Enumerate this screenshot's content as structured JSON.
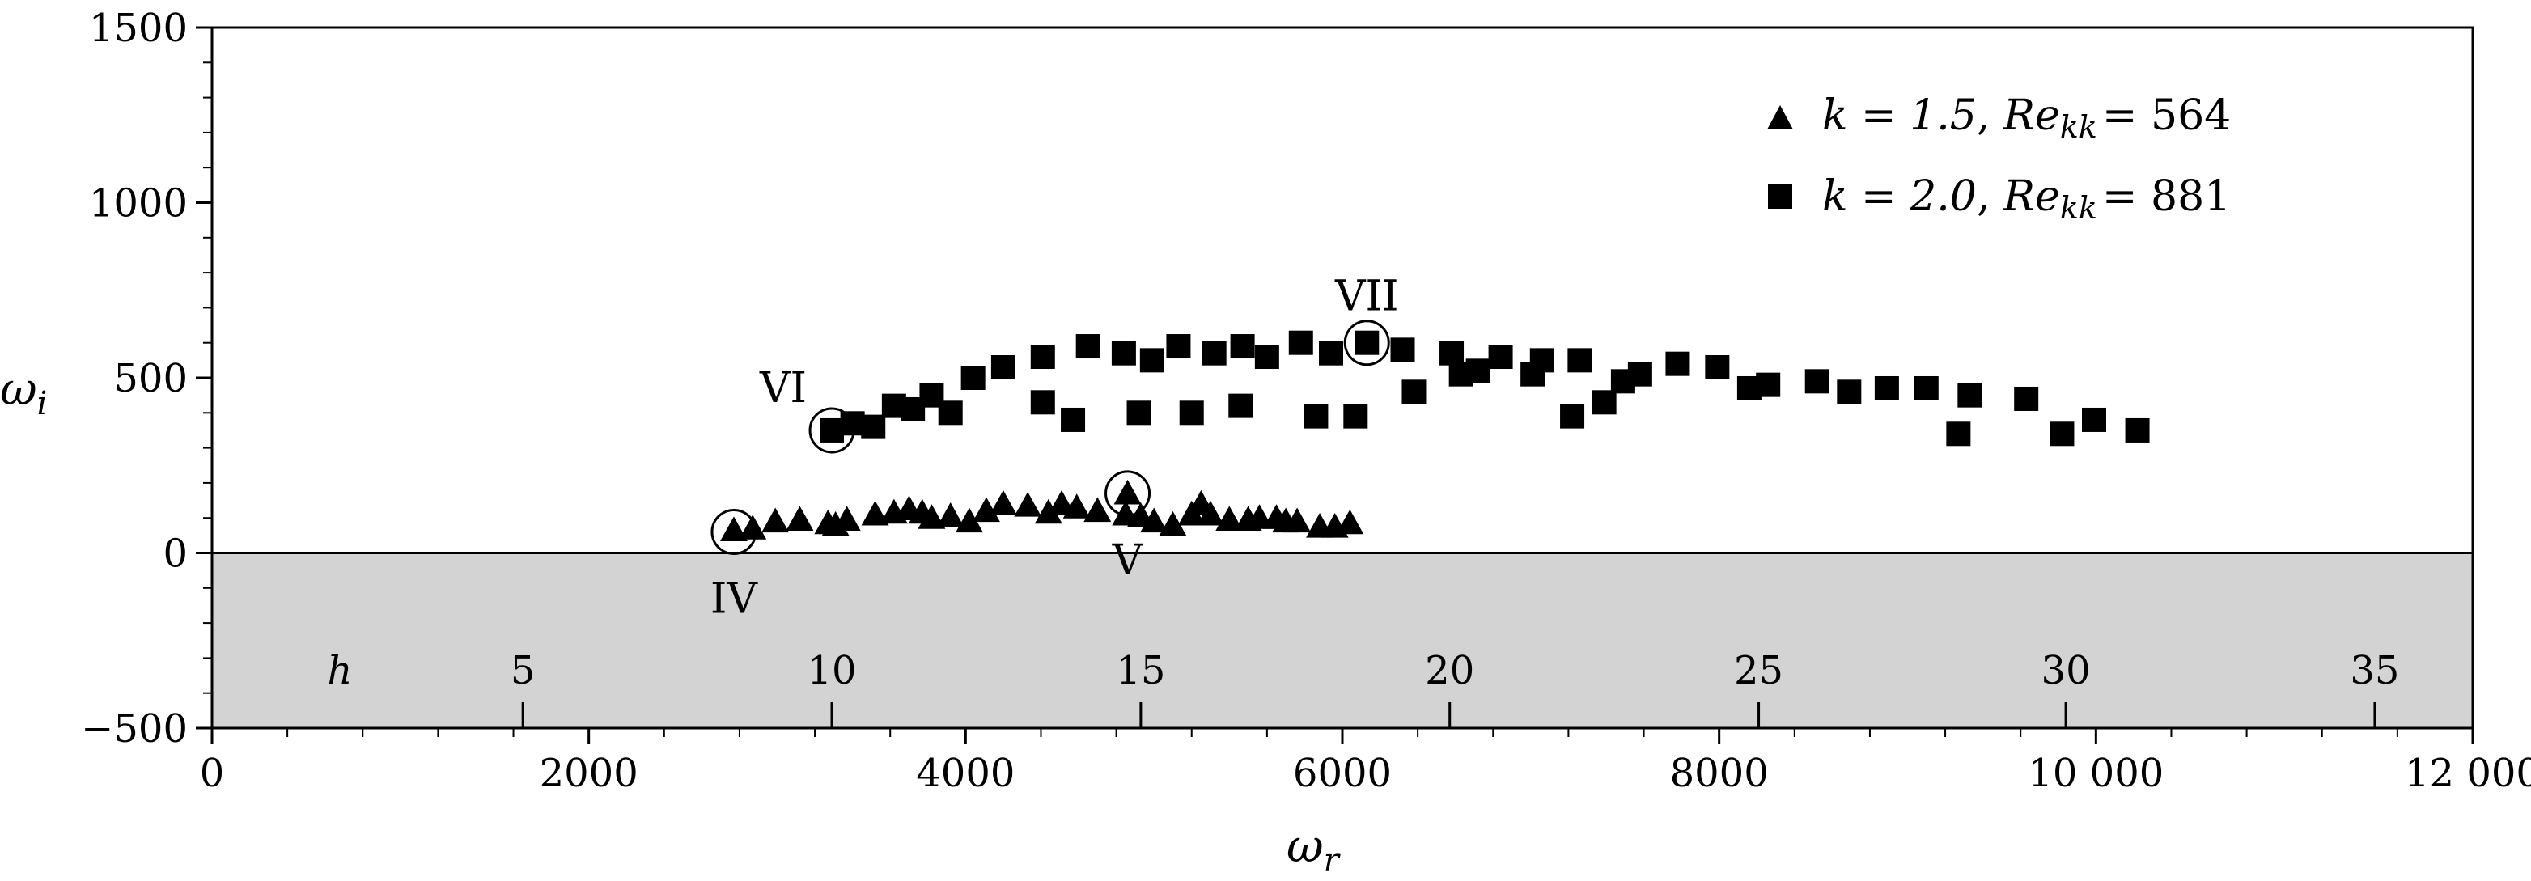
{
  "chart_data": {
    "type": "scatter",
    "title": "",
    "xlabel": "ω",
    "xlabel_sub": "r",
    "ylabel": "ω",
    "ylabel_sub": "i",
    "xlim": [
      0,
      12000
    ],
    "ylim": [
      -500,
      1500
    ],
    "x_ticks": [
      0,
      2000,
      4000,
      6000,
      8000,
      10000,
      12000
    ],
    "x_tick_labels": [
      "0",
      "2000",
      "4000",
      "6000",
      "8000",
      "10 000",
      "12 000"
    ],
    "y_ticks": [
      -500,
      0,
      500,
      1000,
      1500
    ],
    "y_tick_labels": [
      "−500",
      "0",
      "500",
      "1000",
      "1500"
    ],
    "shaded_region": {
      "y_from": -500,
      "y_to": 0,
      "color": "#d3d3d3"
    },
    "h_axis": {
      "label": "h",
      "ticks": [
        {
          "label": "5",
          "x": 1650
        },
        {
          "label": "10",
          "x": 3290
        },
        {
          "label": "15",
          "x": 4930
        },
        {
          "label": "20",
          "x": 6570
        },
        {
          "label": "25",
          "x": 8210
        },
        {
          "label": "30",
          "x": 9840
        },
        {
          "label": "35",
          "x": 11480
        }
      ]
    },
    "legend": {
      "position": "top-right",
      "entries": [
        {
          "marker": "triangle",
          "k": "k = 1.5",
          "re_label": "Re",
          "re_sub": "kk",
          "re_value": "= 564"
        },
        {
          "marker": "square",
          "k": "k = 2.0",
          "re_label": "Re",
          "re_sub": "kk",
          "re_value": "= 881"
        }
      ]
    },
    "series": [
      {
        "name": "k = 1.5, Re_kk = 564",
        "marker": "triangle",
        "points": [
          [
            2770,
            65
          ],
          [
            2870,
            70
          ],
          [
            2990,
            90
          ],
          [
            3120,
            95
          ],
          [
            3270,
            85
          ],
          [
            3310,
            80
          ],
          [
            3370,
            95
          ],
          [
            3520,
            110
          ],
          [
            3620,
            115
          ],
          [
            3700,
            125
          ],
          [
            3770,
            115
          ],
          [
            3820,
            100
          ],
          [
            3920,
            105
          ],
          [
            4020,
            90
          ],
          [
            4110,
            120
          ],
          [
            4200,
            140
          ],
          [
            4330,
            135
          ],
          [
            4440,
            115
          ],
          [
            4510,
            140
          ],
          [
            4590,
            130
          ],
          [
            4700,
            120
          ],
          [
            4850,
            110
          ],
          [
            4860,
            170
          ],
          [
            4930,
            105
          ],
          [
            5000,
            90
          ],
          [
            5100,
            80
          ],
          [
            5200,
            110
          ],
          [
            5250,
            140
          ],
          [
            5300,
            110
          ],
          [
            5400,
            95
          ],
          [
            5500,
            95
          ],
          [
            5560,
            100
          ],
          [
            5650,
            100
          ],
          [
            5700,
            90
          ],
          [
            5760,
            90
          ],
          [
            5880,
            75
          ],
          [
            5960,
            75
          ],
          [
            6040,
            85
          ]
        ]
      },
      {
        "name": "k = 2.0, Re_kk = 881",
        "marker": "square",
        "points": [
          [
            3290,
            350
          ],
          [
            3400,
            370
          ],
          [
            3510,
            360
          ],
          [
            3620,
            420
          ],
          [
            3720,
            410
          ],
          [
            3820,
            450
          ],
          [
            3920,
            400
          ],
          [
            4040,
            500
          ],
          [
            4200,
            530
          ],
          [
            4410,
            560
          ],
          [
            4410,
            430
          ],
          [
            4570,
            380
          ],
          [
            4650,
            590
          ],
          [
            4840,
            570
          ],
          [
            4920,
            400
          ],
          [
            4990,
            550
          ],
          [
            5130,
            590
          ],
          [
            5200,
            400
          ],
          [
            5320,
            570
          ],
          [
            5470,
            590
          ],
          [
            5460,
            420
          ],
          [
            5600,
            560
          ],
          [
            5780,
            600
          ],
          [
            5860,
            390
          ],
          [
            5940,
            570
          ],
          [
            6070,
            390
          ],
          [
            6130,
            600
          ],
          [
            6320,
            580
          ],
          [
            6380,
            460
          ],
          [
            6580,
            570
          ],
          [
            6630,
            510
          ],
          [
            6720,
            520
          ],
          [
            6840,
            560
          ],
          [
            7010,
            510
          ],
          [
            7060,
            550
          ],
          [
            7220,
            390
          ],
          [
            7260,
            550
          ],
          [
            7390,
            430
          ],
          [
            7490,
            490
          ],
          [
            7580,
            510
          ],
          [
            7780,
            540
          ],
          [
            7990,
            530
          ],
          [
            8160,
            470
          ],
          [
            8260,
            480
          ],
          [
            8520,
            490
          ],
          [
            8690,
            460
          ],
          [
            8890,
            470
          ],
          [
            9100,
            470
          ],
          [
            9270,
            340
          ],
          [
            9330,
            450
          ],
          [
            9630,
            440
          ],
          [
            9820,
            340
          ],
          [
            9990,
            380
          ],
          [
            10220,
            350
          ]
        ]
      }
    ],
    "circled_points": [
      {
        "label": "IV",
        "x": 2770,
        "y": 60,
        "label_side": "below"
      },
      {
        "label": "V",
        "x": 4860,
        "y": 170,
        "label_side": "below"
      },
      {
        "label": "VI",
        "x": 3290,
        "y": 350,
        "label_side": "upper-left"
      },
      {
        "label": "VII",
        "x": 6130,
        "y": 600,
        "label_side": "above"
      }
    ]
  }
}
